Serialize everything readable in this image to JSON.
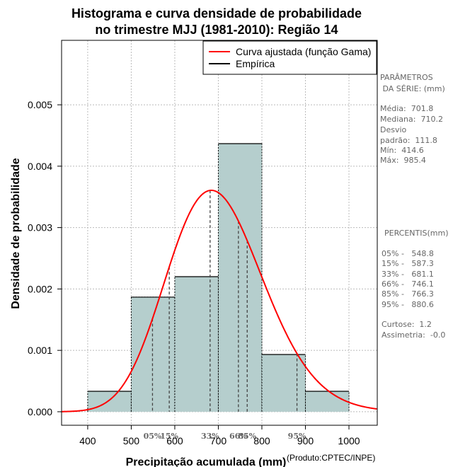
{
  "chart_data": {
    "type": "histogram",
    "title_lines": [
      "Histograma e curva densidade de probabilidade",
      "no trimestre MJJ (1981-2010): Região 14"
    ],
    "xlabel": "Precipitação acumulada (mm)",
    "ylabel": "Densidade de probabilidade",
    "credit": "(Produto:CPTEC/INPE)",
    "xlim": [
      340,
      1065
    ],
    "ylim": [
      -0.00022,
      0.00605
    ],
    "xticks": [
      400,
      500,
      600,
      700,
      800,
      900,
      1000
    ],
    "xtick_labels": [
      "400",
      "500",
      "600",
      "700",
      "800",
      "900",
      "1000"
    ],
    "yticks": [
      0.0,
      0.001,
      0.002,
      0.003,
      0.004,
      0.005
    ],
    "ytick_labels": [
      "0.000",
      "0.001",
      "0.002",
      "0.003",
      "0.004",
      "0.005"
    ],
    "grid": true,
    "bins": [
      {
        "x0": 400,
        "x1": 500,
        "density": 0.000333
      },
      {
        "x0": 500,
        "x1": 600,
        "density": 0.001867
      },
      {
        "x0": 600,
        "x1": 700,
        "density": 0.0022
      },
      {
        "x0": 700,
        "x1": 800,
        "density": 0.004367
      },
      {
        "x0": 800,
        "x1": 900,
        "density": 0.000933
      },
      {
        "x0": 900,
        "x1": 1000,
        "density": 0.000333
      }
    ],
    "fitted_curve": {
      "name": "Curva ajustada (função Gama)",
      "color": "#ff0000",
      "distribution": "gamma",
      "mean": 701.8,
      "sd": 111.8,
      "x_range": [
        340,
        1065
      ]
    },
    "empirical_name": "Empírica",
    "percentiles": [
      {
        "label": "05%",
        "value": 548.8
      },
      {
        "label": "15%",
        "value": 587.3
      },
      {
        "label": "33%",
        "value": 681.1
      },
      {
        "label": "66%",
        "value": 746.1
      },
      {
        "label": "85%",
        "value": 766.3
      },
      {
        "label": "95%",
        "value": 880.6
      }
    ],
    "legend_position": "top-right"
  },
  "side_panel": {
    "params_title": [
      "PARÂMETROS",
      " DA SÉRIE: (mm)"
    ],
    "params": [
      "Média:  701.8",
      "Mediana:  710.2",
      "Desvio",
      "padrão:  111.8",
      "Mín:  414.6",
      "Máx:  985.4"
    ],
    "percentis_title": "PERCENTIS(mm)",
    "percentis": [
      "05% -   548.8",
      "15% -   587.3",
      "33% -   681.1",
      "66% -   746.1",
      "85% -   766.3",
      "95% -   880.6"
    ],
    "stats": [
      "Curtose:  1.2",
      "Assimetria:  -0.0"
    ]
  },
  "colors": {
    "bar_fill": "#b5cecd",
    "bar_stroke": "#000000",
    "grid": "#bbbbbb",
    "percentile_line": "#444444"
  }
}
